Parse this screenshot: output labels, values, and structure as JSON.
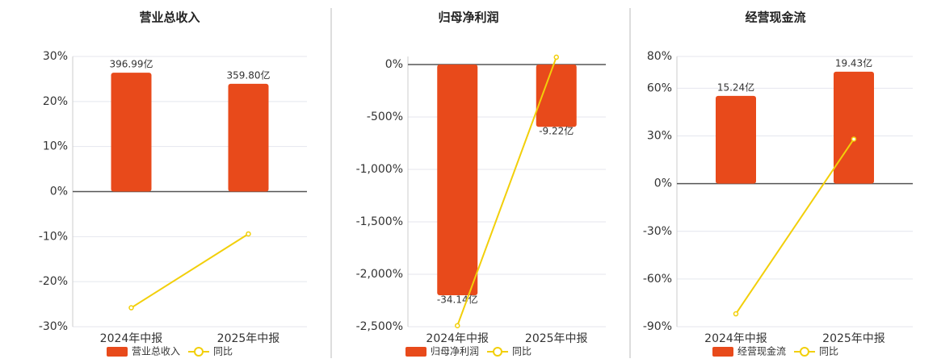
{
  "chart_data": [
    {
      "type": "bar",
      "title": "营业总收入",
      "categories": [
        "2024年中报",
        "2025年中报"
      ],
      "series": [
        {
          "name": "营业总收入",
          "color": "#e84a1b",
          "values": [
            396.99,
            359.8
          ],
          "value_labels": [
            "396.99亿",
            "359.80亿"
          ]
        },
        {
          "name": "同比",
          "color": "#f2cf0a",
          "type": "line",
          "values": [
            -25.8,
            -9.4
          ]
        }
      ],
      "ylim": [
        -30,
        30
      ],
      "yticks": [
        {
          "value": -30,
          "label": "-30%"
        },
        {
          "value": -20,
          "label": "-20%"
        },
        {
          "value": -10,
          "label": "-10%"
        },
        {
          "value": 0,
          "label": "0%"
        },
        {
          "value": 10,
          "label": "10%"
        },
        {
          "value": 20,
          "label": "20%"
        },
        {
          "value": 30,
          "label": "30%"
        }
      ],
      "grid": true
    },
    {
      "type": "bar",
      "title": "归母净利润",
      "categories": [
        "2024年中报",
        "2025年中报"
      ],
      "series": [
        {
          "name": "归母净利润",
          "color": "#e84a1b",
          "values": [
            -34.14,
            -9.22
          ],
          "value_labels": [
            "-34.14亿",
            "-9.22亿"
          ]
        },
        {
          "name": "同比",
          "color": "#f2cf0a",
          "type": "line",
          "values": [
            -2490,
            70
          ]
        }
      ],
      "ylim": [
        -2500,
        77
      ],
      "yticks": [
        {
          "value": -2500,
          "label": "-2,500%"
        },
        {
          "value": -2000,
          "label": "-2,000%"
        },
        {
          "value": -1500,
          "label": "-1,500%"
        },
        {
          "value": -1000,
          "label": "-1,000%"
        },
        {
          "value": -500,
          "label": "-500%"
        },
        {
          "value": 0,
          "label": "0%"
        }
      ],
      "grid": true
    },
    {
      "type": "bar",
      "title": "经营现金流",
      "categories": [
        "2024年中报",
        "2025年中报"
      ],
      "series": [
        {
          "name": "经营现金流",
          "color": "#e84a1b",
          "values": [
            15.24,
            19.43
          ],
          "value_labels": [
            "15.24亿",
            "19.43亿"
          ]
        },
        {
          "name": "同比",
          "color": "#f2cf0a",
          "type": "line",
          "values": [
            -81.9,
            28
          ]
        }
      ],
      "ylim": [
        -90,
        80
      ],
      "yticks": [
        {
          "value": -90,
          "label": "-90%"
        },
        {
          "value": -60,
          "label": "-60%"
        },
        {
          "value": -30,
          "label": "-30%"
        },
        {
          "value": 0,
          "label": "0%"
        },
        {
          "value": 30,
          "label": "30%"
        },
        {
          "value": 60,
          "label": "60%"
        },
        {
          "value": 80,
          "label": "80%"
        }
      ],
      "grid": true
    }
  ]
}
